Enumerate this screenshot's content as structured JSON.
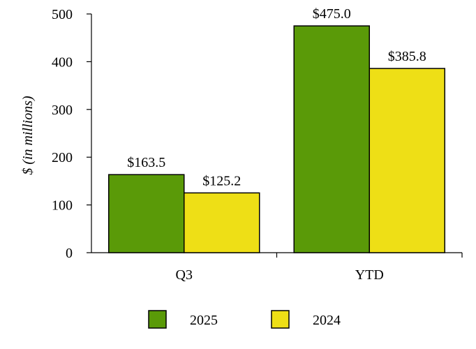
{
  "chart_data": {
    "type": "bar",
    "categories": [
      "Q3",
      "YTD"
    ],
    "series": [
      {
        "name": "2025",
        "color": "#5a9a08",
        "values": [
          163.5,
          475.0
        ],
        "labels": [
          "$163.5",
          "$475.0"
        ]
      },
      {
        "name": "2024",
        "color": "#eedf16",
        "values": [
          125.2,
          385.8
        ],
        "labels": [
          "$125.2",
          "$385.8"
        ]
      }
    ],
    "ylabel": "$ (in millions)",
    "xlabel": "",
    "ylim": [
      0,
      500
    ],
    "yticks": [
      "0",
      "100",
      "200",
      "300",
      "400",
      "500"
    ],
    "grid": false,
    "legend_position": "bottom"
  }
}
